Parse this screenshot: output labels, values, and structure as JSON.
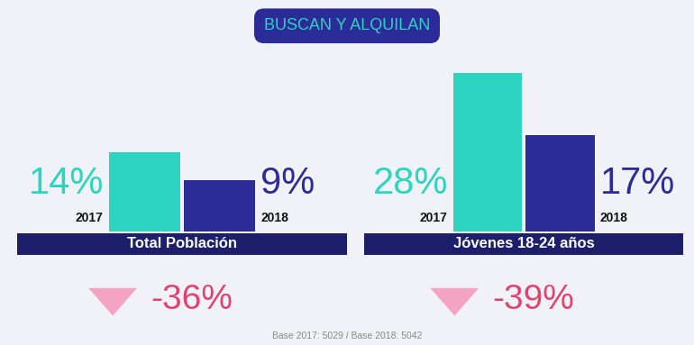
{
  "title": "BUSCAN Y ALQUILAN",
  "footnote": "Base 2017: 5029 / Base 2018: 5042",
  "chart_data": [
    {
      "type": "bar",
      "title": "Total Población",
      "categories": [
        "2017",
        "2018"
      ],
      "values": [
        14,
        9
      ],
      "value_labels": [
        "14%",
        "9%"
      ],
      "colors": [
        "#2dd4c0",
        "#2b2c9a"
      ],
      "ylim": [
        0,
        30
      ],
      "data_labels": true,
      "tick_labels": false,
      "annotation": "-36%"
    },
    {
      "type": "bar",
      "title": "Jóvenes 18-24 años",
      "categories": [
        "2017",
        "2018"
      ],
      "values": [
        28,
        17
      ],
      "value_labels": [
        "28%",
        "17%"
      ],
      "colors": [
        "#2dd4c0",
        "#2b2c9a"
      ],
      "ylim": [
        0,
        30
      ],
      "data_labels": true,
      "tick_labels": false,
      "annotation": "-39%"
    }
  ]
}
